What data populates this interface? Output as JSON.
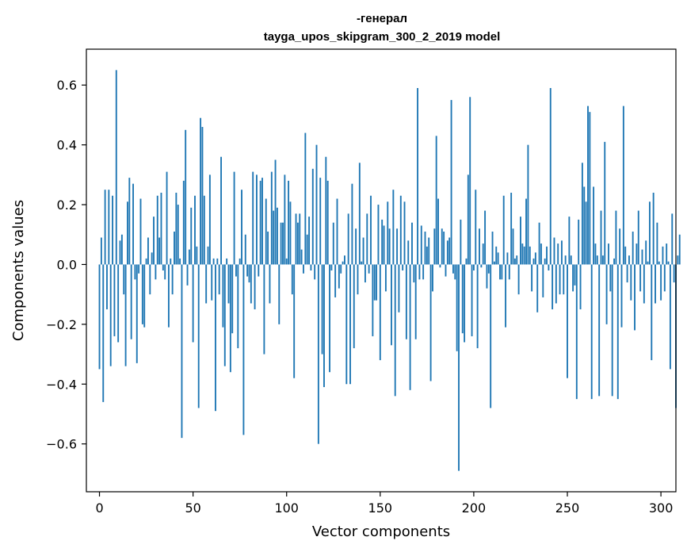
{
  "chart_data": {
    "type": "bar",
    "title_line1": "-генерал",
    "title_line2": "tayga_upos_skipgram_300_2_2019 model",
    "xlabel": "Vector components",
    "ylabel": "Components values",
    "xlim": [
      -7,
      308
    ],
    "ylim": [
      -0.76,
      0.72
    ],
    "x_ticks": [
      0,
      50,
      100,
      150,
      200,
      250,
      300
    ],
    "x_tick_labels": [
      "0",
      "50",
      "100",
      "150",
      "200",
      "250",
      "300"
    ],
    "y_ticks": [
      -0.6,
      -0.4,
      -0.2,
      0.0,
      0.2,
      0.4,
      0.6
    ],
    "y_tick_labels": [
      "−0.6",
      "−0.4",
      "−0.2",
      "0.0",
      "0.2",
      "0.4",
      "0.6"
    ],
    "bar_color": "#1f77b4",
    "grid": false,
    "legend": "none",
    "values": [
      -0.35,
      0.09,
      -0.46,
      0.25,
      -0.15,
      0.25,
      -0.34,
      0.23,
      -0.24,
      0.65,
      -0.26,
      0.08,
      0.1,
      -0.1,
      -0.34,
      0.21,
      0.29,
      -0.25,
      0.27,
      -0.05,
      -0.33,
      -0.03,
      0.22,
      -0.2,
      -0.21,
      0.02,
      0.09,
      -0.1,
      0.04,
      0.16,
      -0.05,
      0.23,
      0.09,
      0.24,
      -0.02,
      -0.05,
      0.31,
      -0.21,
      0.02,
      -0.1,
      0.11,
      0.24,
      0.2,
      0.02,
      -0.58,
      0.28,
      0.45,
      -0.07,
      0.05,
      0.19,
      -0.26,
      0.23,
      0.06,
      -0.48,
      0.49,
      0.46,
      0.23,
      -0.13,
      0.06,
      0.3,
      -0.12,
      0.02,
      -0.49,
      0.02,
      -0.1,
      0.36,
      -0.21,
      -0.34,
      0.02,
      -0.13,
      -0.36,
      -0.23,
      0.31,
      -0.04,
      -0.28,
      0.02,
      0.25,
      -0.57,
      0.1,
      -0.04,
      -0.06,
      -0.13,
      0.31,
      -0.15,
      0.3,
      -0.04,
      0.28,
      0.29,
      -0.3,
      0.22,
      0.11,
      -0.13,
      0.31,
      0.18,
      0.35,
      0.19,
      -0.2,
      0.14,
      0.14,
      0.3,
      0.02,
      0.28,
      0.21,
      -0.1,
      -0.38,
      0.17,
      0.14,
      0.17,
      0.05,
      -0.03,
      0.44,
      0.1,
      0.16,
      -0.02,
      0.32,
      -0.05,
      0.4,
      -0.6,
      0.29,
      -0.3,
      -0.41,
      0.36,
      0.28,
      -0.36,
      -0.02,
      0.14,
      -0.11,
      0.22,
      -0.08,
      -0.03,
      0.01,
      0.03,
      -0.4,
      0.17,
      -0.4,
      0.27,
      -0.28,
      0.12,
      -0.1,
      0.34,
      0.01,
      0.09,
      -0.06,
      0.17,
      -0.03,
      0.23,
      -0.24,
      -0.12,
      -0.12,
      0.2,
      -0.32,
      0.15,
      0.13,
      -0.09,
      0.21,
      0.12,
      -0.27,
      0.25,
      -0.44,
      0.12,
      -0.16,
      0.23,
      -0.02,
      0.21,
      -0.25,
      0.08,
      -0.42,
      0.14,
      -0.06,
      -0.25,
      0.59,
      -0.05,
      0.13,
      -0.05,
      0.11,
      0.06,
      0.09,
      -0.39,
      -0.09,
      0.12,
      0.43,
      0.22,
      -0.01,
      0.12,
      0.11,
      -0.04,
      0.08,
      0.09,
      0.55,
      -0.03,
      -0.05,
      -0.29,
      -0.69,
      0.15,
      -0.23,
      -0.26,
      0.02,
      0.3,
      0.56,
      -0.24,
      -0.02,
      0.25,
      -0.28,
      0.12,
      -0.01,
      0.07,
      0.18,
      -0.08,
      -0.03,
      -0.48,
      0.11,
      0.01,
      0.06,
      0.04,
      -0.05,
      -0.05,
      0.23,
      -0.21,
      0.04,
      -0.05,
      0.24,
      0.12,
      0.02,
      0.03,
      -0.1,
      0.16,
      0.07,
      0.06,
      0.22,
      0.4,
      0.06,
      -0.09,
      0.02,
      0.04,
      -0.16,
      0.14,
      0.07,
      -0.11,
      0.02,
      0.06,
      -0.02,
      0.59,
      -0.15,
      0.09,
      -0.13,
      0.07,
      -0.1,
      0.08,
      -0.1,
      0.03,
      -0.38,
      0.16,
      0.03,
      -0.09,
      -0.07,
      -0.45,
      0.15,
      -0.15,
      0.34,
      0.26,
      0.21,
      0.53,
      0.51,
      -0.45,
      0.26,
      0.07,
      0.03,
      -0.44,
      0.18,
      0.03,
      0.41,
      -0.2,
      0.07,
      -0.09,
      -0.44,
      0.02,
      0.18,
      -0.45,
      0.12,
      -0.21,
      0.53,
      0.06,
      -0.06,
      0.03,
      -0.12,
      0.11,
      -0.22,
      0.07,
      0.18,
      -0.09,
      0.05,
      -0.13,
      0.08,
      0.01,
      0.21,
      -0.32,
      0.24,
      -0.13,
      0.14,
      0.01,
      -0.12,
      0.06,
      -0.09,
      0.07,
      0.01,
      -0.35,
      0.17,
      -0.06,
      -0.48,
      0.03,
      0.1
    ]
  }
}
